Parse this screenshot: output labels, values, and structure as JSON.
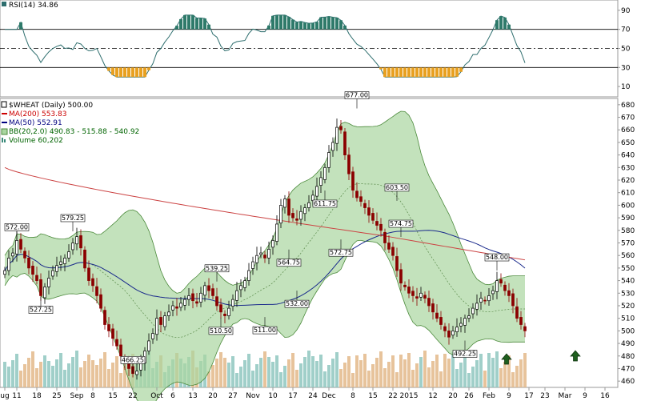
{
  "chart_data": {
    "type": "candlestick",
    "symbol_label": "$WHEAT (Daily) 500.00",
    "rsi_label": "RSI(14) 34.86",
    "legend": [
      {
        "text": "MA(200) 553.83",
        "color": "#cc0000"
      },
      {
        "text": "MA(50) 552.91",
        "color": "#000080"
      },
      {
        "text": "BB(20,2.0) 490.83 - 515.88 - 540.92",
        "color": "#006400"
      },
      {
        "text": "Volume 60,202",
        "color": "#006400"
      }
    ],
    "colors": {
      "up": "#000000",
      "down": "#8b0000",
      "bb_fill": "#a9d6a0",
      "bb_line": "#4c8a3c",
      "ma200": "#cc4444",
      "ma50": "#1a2a8c",
      "vol_up": "#8fc7c0",
      "vol_down": "#e3b98a",
      "rsi_line": "#2e6e6e",
      "rsi_ob": "#2e7a6a",
      "rsi_os": "#e8a020"
    },
    "ylim": [
      455,
      685
    ],
    "y_ticks": [
      460,
      470,
      480,
      490,
      500,
      510,
      520,
      530,
      540,
      550,
      560,
      570,
      580,
      590,
      600,
      610,
      620,
      630,
      640,
      650,
      660,
      670,
      680
    ],
    "rsi_ylim": [
      0,
      100
    ],
    "rsi_ticks": [
      10,
      30,
      50,
      70,
      90
    ],
    "x_ticks": [
      {
        "label": "ug",
        "bar": 0
      },
      {
        "label": "11",
        "bar": 3
      },
      {
        "label": "18",
        "bar": 8
      },
      {
        "label": "25",
        "bar": 13
      },
      {
        "label": "Sep",
        "bar": 18
      },
      {
        "label": "8",
        "bar": 22
      },
      {
        "label": "15",
        "bar": 27
      },
      {
        "label": "22",
        "bar": 32
      },
      {
        "label": "Oct",
        "bar": 38
      },
      {
        "label": "6",
        "bar": 42
      },
      {
        "label": "13",
        "bar": 47
      },
      {
        "label": "20",
        "bar": 52
      },
      {
        "label": "27",
        "bar": 57
      },
      {
        "label": "Nov",
        "bar": 62
      },
      {
        "label": "10",
        "bar": 67
      },
      {
        "label": "17",
        "bar": 72
      },
      {
        "label": "24",
        "bar": 77
      },
      {
        "label": "Dec",
        "bar": 81
      },
      {
        "label": "8",
        "bar": 87
      },
      {
        "label": "15",
        "bar": 92
      },
      {
        "label": "22",
        "bar": 97
      },
      {
        "label": "2015",
        "bar": 101
      },
      {
        "label": "12",
        "bar": 107
      },
      {
        "label": "20",
        "bar": 112
      },
      {
        "label": "26",
        "bar": 116
      },
      {
        "label": "Feb",
        "bar": 121
      },
      {
        "label": "9",
        "bar": 126
      },
      {
        "label": "17",
        "bar": 131
      },
      {
        "label": "23",
        "bar": 135
      },
      {
        "label": "Mar",
        "bar": 140
      },
      {
        "label": "9",
        "bar": 145
      },
      {
        "label": "16",
        "bar": 150
      }
    ],
    "closes": [
      548,
      558,
      562,
      572,
      565,
      558,
      550,
      545,
      540,
      528,
      535,
      542,
      548,
      552,
      555,
      558,
      563,
      570,
      575,
      566,
      550,
      540,
      536,
      528,
      518,
      505,
      500,
      494,
      488,
      480,
      474,
      470,
      466,
      468,
      476,
      484,
      492,
      498,
      510,
      505,
      512,
      515,
      520,
      518,
      522,
      525,
      528,
      524,
      522,
      530,
      536,
      532,
      528,
      520,
      515,
      512,
      518,
      525,
      532,
      536,
      540,
      548,
      555,
      560,
      562,
      558,
      565,
      572,
      585,
      600,
      605,
      592,
      590,
      588,
      595,
      598,
      602,
      608,
      615,
      622,
      630,
      642,
      650,
      662,
      660,
      640,
      625,
      612,
      606,
      603,
      598,
      592,
      588,
      584,
      580,
      570,
      565,
      560,
      548,
      538,
      535,
      530,
      528,
      526,
      530,
      526,
      520,
      515,
      510,
      505,
      500,
      495,
      500,
      503,
      506,
      510,
      512,
      518,
      522,
      526,
      524,
      528,
      532,
      540,
      538,
      532,
      528,
      520,
      510,
      505,
      500
    ],
    "annotations": [
      {
        "text": "572.00",
        "bar": 3,
        "value": 572.0
      },
      {
        "text": "527.25",
        "bar": 9,
        "value": 527.25
      },
      {
        "text": "579.25",
        "bar": 17,
        "value": 579.25
      },
      {
        "text": "466.25",
        "bar": 32,
        "value": 466.25
      },
      {
        "text": "539.25",
        "bar": 53,
        "value": 539.25
      },
      {
        "text": "510.50",
        "bar": 54,
        "value": 510.5
      },
      {
        "text": "511.00",
        "bar": 65,
        "value": 511.0
      },
      {
        "text": "564.75",
        "bar": 71,
        "value": 564.75
      },
      {
        "text": "532.00",
        "bar": 73,
        "value": 532.0
      },
      {
        "text": "611.75",
        "bar": 80,
        "value": 611.75
      },
      {
        "text": "572.75",
        "bar": 84,
        "value": 572.75
      },
      {
        "text": "677.00",
        "bar": 88,
        "value": 677.0
      },
      {
        "text": "603.50",
        "bar": 98,
        "value": 603.5
      },
      {
        "text": "574.75",
        "bar": 99,
        "value": 574.75
      },
      {
        "text": "492.25",
        "bar": 115,
        "value": 492.25
      },
      {
        "text": "548.00",
        "bar": 123,
        "value": 548.0
      }
    ]
  }
}
